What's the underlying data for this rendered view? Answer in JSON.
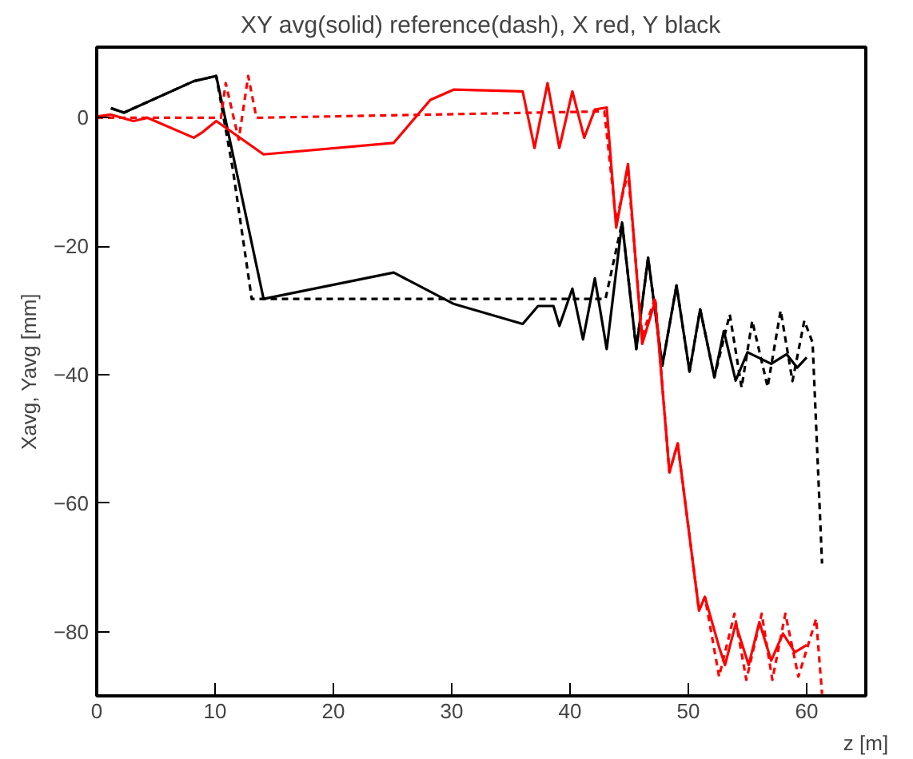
{
  "chart_data": {
    "type": "line",
    "title": "XY avg(solid) reference(dash), X red, Y black",
    "xlabel": "z [m]",
    "ylabel": "Xavg, Yavg [mm]",
    "xlim": [
      0,
      65
    ],
    "ylim": [
      -90,
      11
    ],
    "xticks": [
      0,
      10,
      20,
      30,
      40,
      50,
      60
    ],
    "yticks": [
      -80,
      -60,
      -40,
      -20,
      0
    ],
    "grid": false,
    "series": [
      {
        "color": "#000000",
        "line_style": "solid",
        "x": [
          1.2,
          2.3,
          8.2,
          10.1,
          14.1,
          25.1,
          30.2,
          36.0,
          37.3,
          38.6,
          39.1,
          40.2,
          41.1,
          42.1,
          43.1,
          44.4,
          45.6,
          46.6,
          47.8,
          49.0,
          50.1,
          51.0,
          52.2,
          53.0,
          54.0,
          55.0,
          57.0,
          58.3,
          59.2,
          60.0
        ],
        "values": [
          1.5,
          0.8,
          5.7,
          6.5,
          -28.2,
          -24.1,
          -29,
          -32.1,
          -29.3,
          -29.3,
          -32.4,
          -26.6,
          -34.5,
          -25,
          -36,
          -16.3,
          -36,
          -21.8,
          -38.6,
          -26.1,
          -39.5,
          -29.8,
          -40.4,
          -33.2,
          -40.9,
          -36.5,
          -38.3,
          -36.8,
          -38.9,
          -37.3
        ]
      },
      {
        "color": "#000000",
        "line_style": "dashed",
        "x": [
          1.2,
          2.3,
          8.2,
          10.1,
          11.5,
          13.1,
          43.0,
          44.4,
          45.6,
          46.6,
          47.8,
          49.0,
          50.1,
          51.0,
          52.2,
          53.5,
          54.5,
          55.4,
          56.7,
          57.8,
          58.8,
          59.8,
          60.5,
          61.3
        ],
        "values": [
          1.5,
          0.8,
          5.7,
          6.5,
          -8,
          -28.2,
          -28.2,
          -16.3,
          -36,
          -21.8,
          -38.6,
          -26.1,
          -39.5,
          -29.8,
          -40.4,
          -30.6,
          -42,
          -31.6,
          -41.9,
          -30,
          -41,
          -31.6,
          -35,
          -69.4
        ]
      },
      {
        "color": "#ff0000",
        "line_style": "solid",
        "x": [
          0,
          1.2,
          3.1,
          4.3,
          8.2,
          8.9,
          10.1,
          14.1,
          25.1,
          28.2,
          30.2,
          36.0,
          37.0,
          38.1,
          39.1,
          40.2,
          41.2,
          42.1,
          43.1,
          43.9,
          44.9,
          46.1,
          47.2,
          48.4,
          49.1,
          50.9,
          51.4,
          52.6,
          53.1,
          54.0,
          55.1,
          56.0,
          57.0,
          58.0,
          59.0,
          60.0
        ],
        "values": [
          0.2,
          0.5,
          -0.5,
          0,
          -3.1,
          -2.3,
          -0.5,
          -5.7,
          -3.9,
          2.8,
          4.4,
          4.1,
          -4.7,
          5.4,
          -4.7,
          4.1,
          -3.1,
          1.3,
          1.6,
          -17.1,
          -7.2,
          -35.2,
          -28.5,
          -55.2,
          -50.7,
          -76.7,
          -74.6,
          -82.4,
          -85.2,
          -78.8,
          -85.2,
          -78.5,
          -84.5,
          -80.3,
          -83.2,
          -82.1
        ]
      },
      {
        "color": "#ff0000",
        "line_style": "dashed",
        "x": [
          0,
          10.5,
          10.9,
          12.0,
          12.8,
          13.5,
          42.9,
          43.9,
          44.9,
          46.1,
          47.2,
          48.4,
          49.1,
          50.9,
          51.4,
          52.6,
          53.9,
          54.9,
          56.2,
          57.1,
          58.2,
          59.3,
          60.8,
          61.3
        ],
        "values": [
          0,
          0,
          5.4,
          -3.4,
          6.5,
          0,
          1,
          -16,
          -8.5,
          -34,
          -28,
          -55.2,
          -50.7,
          -76.7,
          -74.6,
          -87,
          -77.2,
          -87.5,
          -77.2,
          -87.5,
          -77.2,
          -87,
          -78,
          -89.7
        ]
      }
    ]
  }
}
